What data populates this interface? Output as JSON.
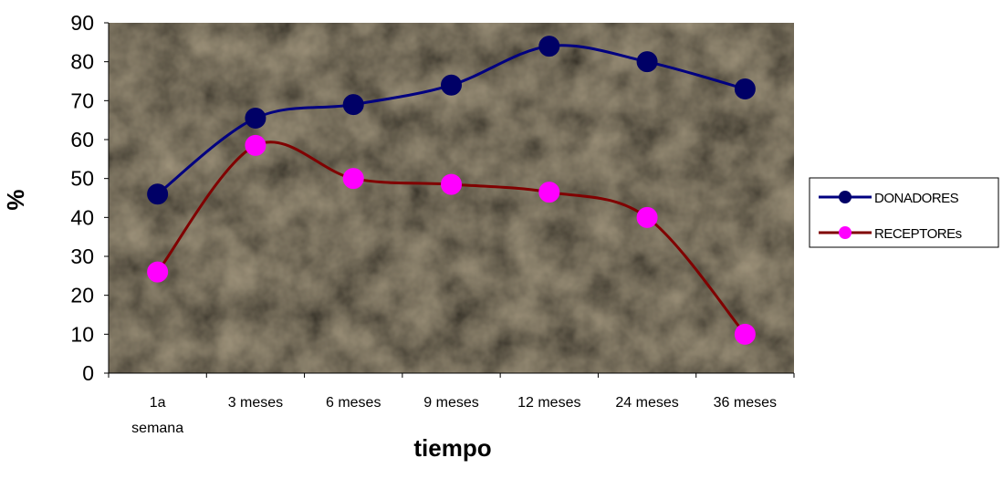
{
  "chart_data": {
    "type": "line",
    "categories": [
      [
        "1a",
        "semana"
      ],
      [
        "3 meses"
      ],
      [
        "6 meses"
      ],
      [
        "9 meses"
      ],
      [
        "12 meses"
      ],
      [
        "24 meses"
      ],
      [
        "36 meses"
      ]
    ],
    "xlabel": "tiempo",
    "ylabel": "%",
    "ylim": [
      0,
      90
    ],
    "yticks": [
      0,
      10,
      20,
      30,
      40,
      50,
      60,
      70,
      80,
      90
    ],
    "grid": false,
    "smooth": true,
    "legend_position": "right",
    "plot_background": "#e8d6b0",
    "series": [
      {
        "name": "DONADORES",
        "values": [
          46,
          65.5,
          69,
          74,
          84,
          80,
          73
        ],
        "line_color": "#000080",
        "marker_color": "#000066"
      },
      {
        "name": "RECEPTOREs",
        "values": [
          26,
          58.5,
          50,
          48.5,
          46.5,
          40,
          10
        ],
        "line_color": "#800000",
        "marker_color": "#ff00ff"
      }
    ]
  }
}
